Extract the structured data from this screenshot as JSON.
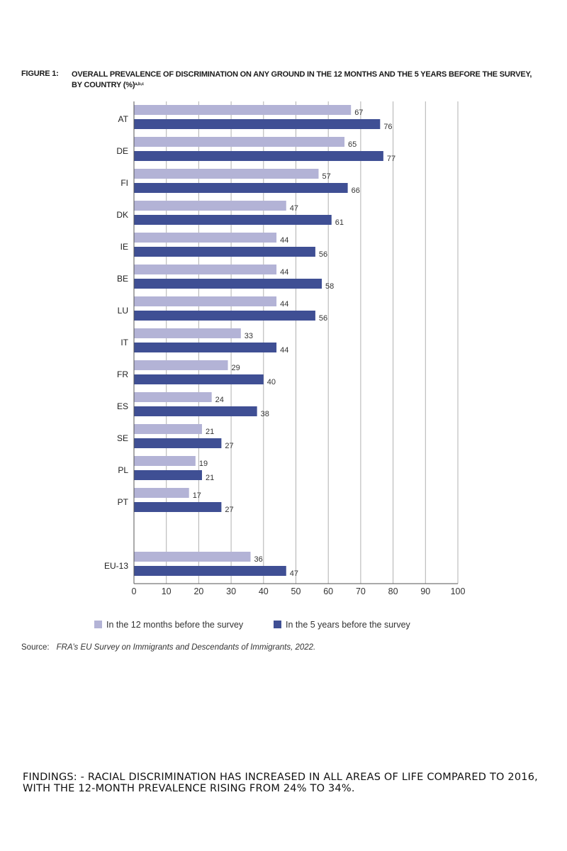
{
  "figure": {
    "label": "FIGURE 1:",
    "title": "OVERALL PREVALENCE OF DISCRIMINATION ON ANY GROUND IN THE 12 MONTHS AND THE 5 YEARS BEFORE THE SURVEY, BY COUNTRY (%)",
    "title_superscript": "a,b,c"
  },
  "chart_data": {
    "type": "bar",
    "orientation": "horizontal",
    "categories": [
      "AT",
      "DE",
      "FI",
      "DK",
      "IE",
      "BE",
      "LU",
      "IT",
      "FR",
      "ES",
      "SE",
      "PL",
      "PT",
      "EU-13"
    ],
    "series": [
      {
        "name": "In the 12 months before the survey",
        "color": "#b3b3d6",
        "values": [
          67,
          65,
          57,
          47,
          44,
          44,
          44,
          33,
          29,
          24,
          21,
          19,
          17,
          36
        ]
      },
      {
        "name": "In the 5 years before the survey",
        "color": "#3f4f94",
        "values": [
          76,
          77,
          66,
          61,
          56,
          58,
          56,
          44,
          40,
          38,
          27,
          21,
          27,
          47
        ]
      }
    ],
    "xlim": [
      0,
      100
    ],
    "xticks": [
      0,
      10,
      20,
      30,
      40,
      50,
      60,
      70,
      80,
      90,
      100
    ],
    "grid": true,
    "legend_position": "bottom",
    "data_labels": true
  },
  "legend": {
    "items": [
      {
        "label": "In the 12 months before the survey",
        "color": "#b3b3d6"
      },
      {
        "label": "In the 5 years before the survey",
        "color": "#3f4f94"
      }
    ]
  },
  "source": {
    "label": "Source:",
    "text": "FRA’s EU Survey on Immigrants and Descendants of Immigrants, 2022."
  },
  "findings": {
    "text": "FINDINGS: - RACIAL DISCRIMINATION HAS INCREASED IN ALL AREAS OF LIFE COMPARED TO 2016, WITH THE 12-MONTH PREVALENCE RISING FROM 24% TO 34%."
  }
}
